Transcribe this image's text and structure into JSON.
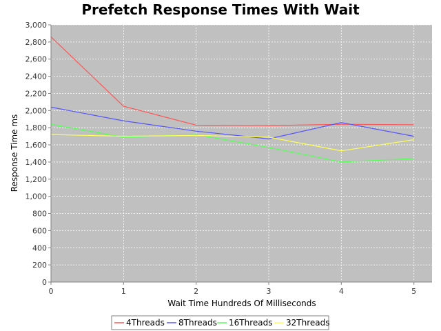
{
  "chart_data": {
    "type": "line",
    "title": "Prefetch Response Times With Wait",
    "xlabel": "Wait Time Hundreds Of Milliseconds",
    "ylabel": "Response Time ms",
    "x": [
      0,
      1,
      2,
      3,
      4,
      5
    ],
    "xlim": [
      0,
      5.25
    ],
    "ylim": [
      0,
      3000
    ],
    "yticks": [
      0,
      200,
      400,
      600,
      800,
      1000,
      1200,
      1400,
      1600,
      1800,
      2000,
      2200,
      2400,
      2600,
      2800,
      3000
    ],
    "ytick_labels": [
      "0",
      "200",
      "400",
      "600",
      "800",
      "1,000",
      "1,200",
      "1,400",
      "1,600",
      "1,800",
      "2,000",
      "2,200",
      "2,400",
      "2,600",
      "2,800",
      "3,000"
    ],
    "xticks": [
      0,
      1,
      2,
      3,
      4,
      5
    ],
    "xtick_labels": [
      "0",
      "1",
      "2",
      "3",
      "4",
      "5"
    ],
    "grid": true,
    "plot_background": "#c0c0c0",
    "legend_position": "bottom",
    "series": [
      {
        "name": "4Threads",
        "color": "#ff5555",
        "values": [
          2860,
          2050,
          1830,
          1825,
          1840,
          1835
        ]
      },
      {
        "name": "8Threads",
        "color": "#5555ff",
        "values": [
          2040,
          1880,
          1760,
          1670,
          1860,
          1700
        ]
      },
      {
        "name": "16Threads",
        "color": "#55ff55",
        "values": [
          1840,
          1690,
          1720,
          1570,
          1400,
          1440
        ]
      },
      {
        "name": "32Threads",
        "color": "#ffff55",
        "values": [
          1720,
          1700,
          1710,
          1690,
          1530,
          1660
        ]
      }
    ]
  }
}
